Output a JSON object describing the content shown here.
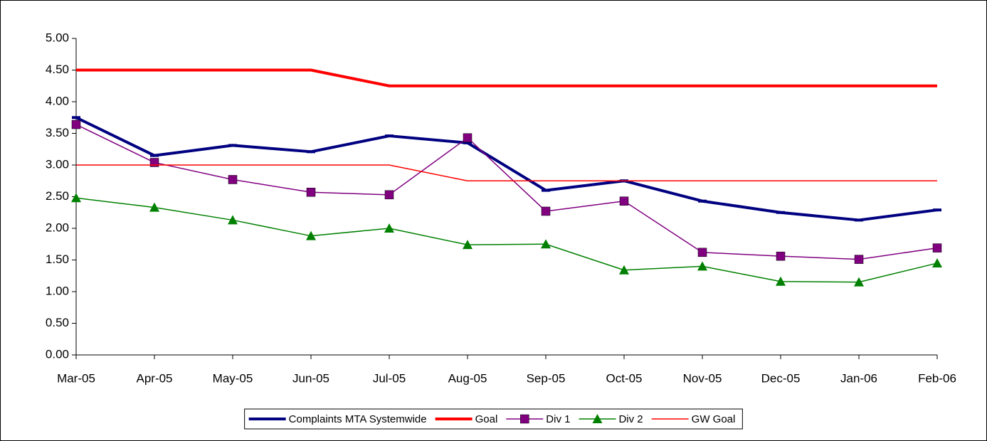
{
  "chart_data": {
    "type": "line",
    "categories": [
      "Mar-05",
      "Apr-05",
      "May-05",
      "Jun-05",
      "Jul-05",
      "Aug-05",
      "Sep-05",
      "Oct-05",
      "Nov-05",
      "Dec-05",
      "Jan-06",
      "Feb-06"
    ],
    "series": [
      {
        "name": "Complaints MTA Systemwide",
        "color": "#000080",
        "width": 4,
        "marker": "dash",
        "values": [
          3.75,
          3.15,
          3.31,
          3.21,
          3.46,
          3.35,
          2.6,
          2.75,
          2.43,
          2.25,
          2.13,
          2.29
        ]
      },
      {
        "name": "Goal",
        "color": "#ff0000",
        "width": 4,
        "marker": "none",
        "values": [
          4.5,
          4.5,
          4.5,
          4.5,
          4.25,
          4.25,
          4.25,
          4.25,
          4.25,
          4.25,
          4.25,
          4.25
        ]
      },
      {
        "name": "Div 1",
        "color": "#800080",
        "width": 1.5,
        "marker": "square",
        "values": [
          3.64,
          3.04,
          2.77,
          2.57,
          2.53,
          3.43,
          2.27,
          2.43,
          1.62,
          1.56,
          1.51,
          1.69
        ]
      },
      {
        "name": "Div 2",
        "color": "#008000",
        "width": 1.5,
        "marker": "triangle",
        "values": [
          2.48,
          2.33,
          2.13,
          1.88,
          2.0,
          1.74,
          1.75,
          1.34,
          1.4,
          1.16,
          1.15,
          1.45
        ]
      },
      {
        "name": "GW Goal",
        "color": "#ff0000",
        "width": 1.5,
        "marker": "none",
        "values": [
          3,
          3,
          3,
          3,
          3,
          2.75,
          2.75,
          2.75,
          2.75,
          2.75,
          2.75,
          2.75
        ]
      }
    ],
    "ylim": [
      0,
      5
    ],
    "yticks": [
      {
        "value": 0,
        "label": "0.00"
      },
      {
        "value": 0.5,
        "label": "0.50"
      },
      {
        "value": 1,
        "label": "1.00"
      },
      {
        "value": 1.5,
        "label": "1.50"
      },
      {
        "value": 2,
        "label": "2.00"
      },
      {
        "value": 2.5,
        "label": "2.50"
      },
      {
        "value": 3,
        "label": "3.00"
      },
      {
        "value": 3.5,
        "label": "3.50"
      },
      {
        "value": 4,
        "label": "4.00"
      },
      {
        "value": 4.5,
        "label": "4.50"
      },
      {
        "value": 5,
        "label": "5.00"
      }
    ],
    "grid": false,
    "legend": "bottom"
  }
}
